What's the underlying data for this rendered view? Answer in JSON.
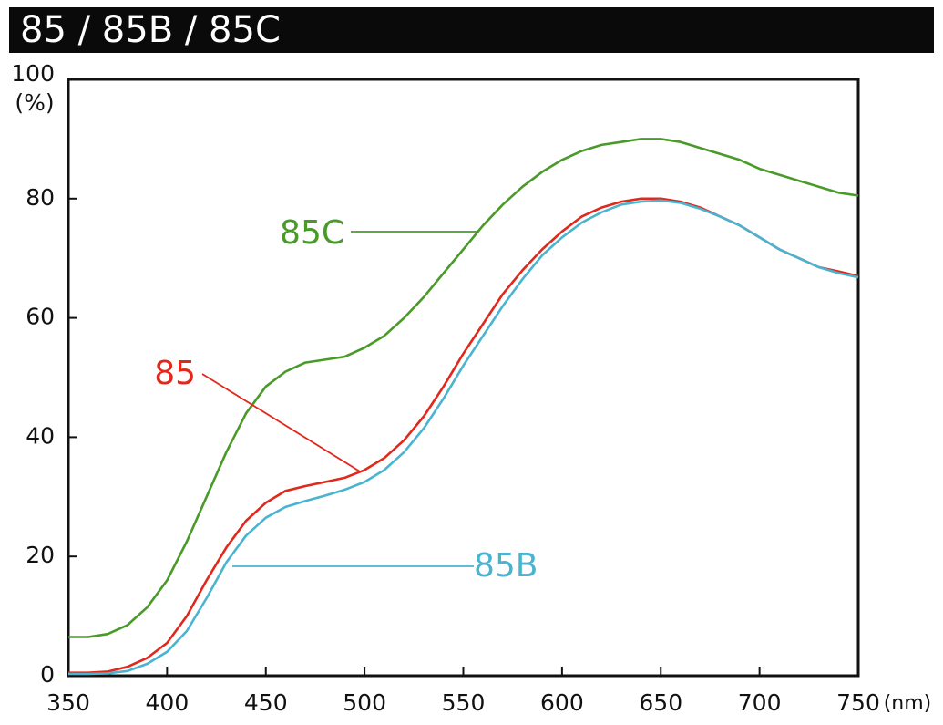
{
  "chart_data": {
    "type": "line",
    "title": "85 / 85B / 85C",
    "y_label": "(%)",
    "x_label": "(nm)",
    "xlim": [
      350,
      750
    ],
    "ylim": [
      0,
      100
    ],
    "xticks": [
      350,
      400,
      450,
      500,
      550,
      600,
      650,
      700,
      750
    ],
    "yticks": [
      0,
      20,
      40,
      60,
      80,
      100
    ],
    "x": [
      350,
      360,
      370,
      380,
      390,
      400,
      410,
      420,
      430,
      440,
      450,
      460,
      470,
      480,
      490,
      500,
      510,
      520,
      530,
      540,
      550,
      560,
      570,
      580,
      590,
      600,
      610,
      620,
      630,
      640,
      650,
      660,
      670,
      680,
      690,
      700,
      710,
      720,
      730,
      740,
      750
    ],
    "series": [
      {
        "name": "85C",
        "color": "#4a9a2a",
        "values": [
          6.5,
          6.5,
          7,
          8.5,
          11.5,
          16,
          22.5,
          30,
          37.5,
          44,
          48.5,
          51,
          52.5,
          53,
          53.5,
          55,
          57,
          60,
          63.5,
          67.5,
          71.5,
          75.5,
          79,
          82,
          84.5,
          86.5,
          88,
          89,
          89.5,
          90,
          90,
          89.5,
          88.5,
          87.5,
          86.5,
          85,
          84,
          83,
          82,
          81,
          80.5
        ]
      },
      {
        "name": "85",
        "color": "#e0281c",
        "values": [
          0.5,
          0.5,
          0.7,
          1.5,
          3,
          5.5,
          10,
          16,
          21.5,
          26,
          29,
          31,
          31.8,
          32.5,
          33.2,
          34.5,
          36.5,
          39.5,
          43.5,
          48.5,
          54,
          59,
          64,
          68,
          71.5,
          74.5,
          77,
          78.5,
          79.5,
          80,
          80,
          79.5,
          78.5,
          77,
          75.5,
          73.5,
          71.5,
          70,
          68.5,
          67.8,
          67
        ]
      },
      {
        "name": "85B",
        "color": "#4ab4d0",
        "values": [
          0.3,
          0.3,
          0.4,
          0.8,
          2,
          4,
          7.5,
          13,
          19,
          23.5,
          26.5,
          28.3,
          29.3,
          30.2,
          31.2,
          32.5,
          34.5,
          37.5,
          41.5,
          46.5,
          52,
          57,
          62,
          66.5,
          70.5,
          73.5,
          76,
          77.7,
          79,
          79.5,
          79.7,
          79.3,
          78.3,
          77,
          75.5,
          73.5,
          71.5,
          70,
          68.5,
          67.5,
          66.8
        ]
      }
    ]
  }
}
